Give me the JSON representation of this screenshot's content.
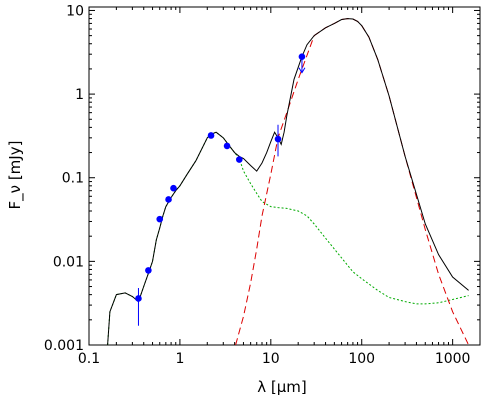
{
  "chart_data": {
    "type": "line",
    "title": "",
    "xlabel": "λ [μm]",
    "ylabel": "F_ν [mJy]",
    "x_scale": "log",
    "y_scale": "log",
    "xlim": [
      0.1,
      2000
    ],
    "ylim": [
      0.001,
      11
    ],
    "grid": false,
    "legend": "none",
    "x_ticks": [
      {
        "value": 0.1,
        "label": "0.1"
      },
      {
        "value": 1,
        "label": "1"
      },
      {
        "value": 10,
        "label": "10"
      },
      {
        "value": 100,
        "label": "100"
      },
      {
        "value": 1000,
        "label": "1000"
      }
    ],
    "y_ticks": [
      {
        "value": 0.001,
        "label": "0.001"
      },
      {
        "value": 0.01,
        "label": "0.01"
      },
      {
        "value": 0.1,
        "label": "0.1"
      },
      {
        "value": 1,
        "label": "1"
      },
      {
        "value": 10,
        "label": "10"
      }
    ],
    "series": [
      {
        "style": "line",
        "color": "#000000",
        "dash": "solid",
        "x": [
          0.16,
          0.17,
          0.2,
          0.25,
          0.3,
          0.35,
          0.4,
          0.45,
          0.5,
          0.55,
          0.6,
          0.65,
          0.7,
          0.8,
          0.9,
          1.0,
          1.2,
          1.5,
          2.0,
          2.2,
          2.5,
          3.0,
          3.5,
          4.0,
          4.5,
          5.0,
          6.0,
          7.0,
          8.0,
          9.0,
          10.0,
          11.0,
          12.0,
          13.0,
          14.0,
          15.0,
          18.0,
          22.0,
          25.0,
          30.0,
          40.0,
          50.0,
          60.0,
          70.0,
          80.0,
          90.0,
          100.0,
          120.0,
          150.0,
          200.0,
          300.0,
          500.0,
          700.0,
          1000.0,
          1500.0
        ],
        "y": [
          0.001,
          0.0025,
          0.004,
          0.0042,
          0.0038,
          0.0033,
          0.005,
          0.0072,
          0.01,
          0.018,
          0.025,
          0.035,
          0.045,
          0.058,
          0.07,
          0.08,
          0.11,
          0.16,
          0.3,
          0.33,
          0.35,
          0.3,
          0.24,
          0.2,
          0.18,
          0.17,
          0.14,
          0.12,
          0.15,
          0.2,
          0.27,
          0.35,
          0.3,
          0.25,
          0.35,
          0.55,
          1.5,
          2.8,
          3.9,
          5.0,
          6.2,
          7.0,
          7.8,
          8.0,
          7.9,
          7.4,
          6.6,
          4.8,
          2.6,
          0.95,
          0.18,
          0.028,
          0.012,
          0.0065,
          0.0045
        ]
      },
      {
        "style": "line",
        "color": "#00aa00",
        "dash": "dotted",
        "x": [
          0.16,
          0.17,
          0.2,
          0.25,
          0.3,
          0.35,
          0.4,
          0.45,
          0.5,
          0.55,
          0.6,
          0.65,
          0.7,
          0.8,
          0.9,
          1.0,
          1.2,
          1.5,
          2.0,
          2.2,
          2.5,
          3.0,
          3.5,
          4.0,
          4.5,
          5.0,
          6.0,
          7.0,
          8.0,
          10.0,
          12.0,
          15.0,
          20.0,
          25.0,
          30.0,
          40.0,
          50.0,
          60.0,
          80.0,
          100.0,
          150.0,
          200.0,
          300.0,
          400.0,
          500.0,
          700.0,
          1000.0,
          1500.0
        ],
        "y": [
          0.001,
          0.0025,
          0.004,
          0.0042,
          0.0038,
          0.0033,
          0.005,
          0.0072,
          0.01,
          0.018,
          0.025,
          0.035,
          0.045,
          0.058,
          0.07,
          0.08,
          0.11,
          0.16,
          0.3,
          0.33,
          0.35,
          0.3,
          0.24,
          0.2,
          0.17,
          0.12,
          0.085,
          0.065,
          0.052,
          0.045,
          0.044,
          0.043,
          0.04,
          0.035,
          0.028,
          0.019,
          0.014,
          0.011,
          0.0075,
          0.0062,
          0.0045,
          0.0037,
          0.0033,
          0.0031,
          0.0031,
          0.0032,
          0.0035,
          0.0039
        ]
      },
      {
        "style": "line",
        "color": "#dd0000",
        "dash": "dashed",
        "x": [
          4.1,
          5.0,
          6.0,
          7.0,
          8.0,
          10.0,
          12.0,
          15.0,
          20.0,
          30.0,
          40.0,
          50.0,
          60.0,
          70.0,
          80.0,
          90.0,
          100.0,
          120.0,
          150.0,
          200.0,
          300.0,
          500.0,
          700.0,
          1000.0,
          1500.0
        ],
        "y": [
          0.001,
          0.0022,
          0.0055,
          0.014,
          0.035,
          0.11,
          0.3,
          0.6,
          1.5,
          5.0,
          6.2,
          7.0,
          7.8,
          8.0,
          7.9,
          7.4,
          6.6,
          4.8,
          2.6,
          0.95,
          0.18,
          0.024,
          0.007,
          0.0025,
          0.001
        ]
      },
      {
        "style": "points",
        "color": "#0000ff",
        "x": [
          0.35,
          0.45,
          0.6,
          0.75,
          0.85,
          2.2,
          3.3,
          4.5,
          12.0,
          22.0
        ],
        "y": [
          0.0036,
          0.0078,
          0.032,
          0.055,
          0.075,
          0.32,
          0.24,
          0.165,
          0.29,
          2.8
        ],
        "err_low": [
          0.0017,
          null,
          null,
          null,
          null,
          null,
          null,
          null,
          0.18,
          null
        ],
        "err_high": [
          0.0048,
          null,
          null,
          null,
          null,
          null,
          null,
          null,
          0.43,
          null
        ],
        "upper_limit": [
          false,
          false,
          false,
          false,
          false,
          false,
          false,
          false,
          false,
          true
        ]
      }
    ]
  }
}
